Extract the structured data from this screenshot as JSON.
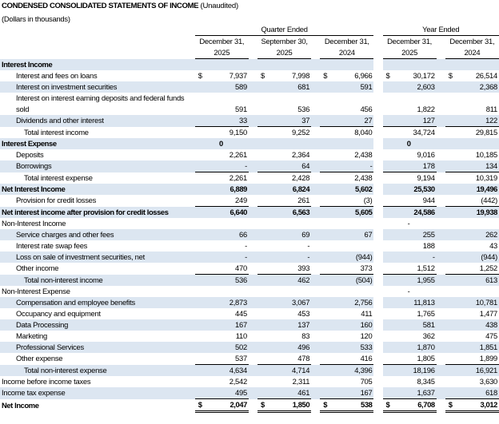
{
  "title": "CONDENSED CONSOLIDATED STATEMENTS OF INCOME",
  "title_suffix": "(Unaudited)",
  "subtitle": "(Dollars in thousands)",
  "groups": {
    "quarter": "Quarter Ended",
    "year": "Year Ended"
  },
  "columns": [
    {
      "line1": "December 31,",
      "line2": "2025"
    },
    {
      "line1": "September 30,",
      "line2": "2025"
    },
    {
      "line1": "December 31,",
      "line2": "2024"
    },
    {
      "line1": "December 31,",
      "line2": "2025"
    },
    {
      "line1": "December 31,",
      "line2": "2024"
    }
  ],
  "rows": [
    {
      "label": "Interest Income",
      "style": "section",
      "shade": true,
      "values": [
        "",
        "",
        "",
        "",
        ""
      ]
    },
    {
      "label": "Interest and fees on loans",
      "indent": 1,
      "dollar": true,
      "values": [
        "7,937",
        "7,998",
        "6,966",
        "30,172",
        "26,514"
      ]
    },
    {
      "label": "Interest on investment securities",
      "indent": 1,
      "shade": true,
      "values": [
        "589",
        "681",
        "591",
        "2,603",
        "2,368"
      ]
    },
    {
      "label": "Interest on interest earning deposits and federal funds sold",
      "indent": 1,
      "two": true,
      "values": [
        "591",
        "536",
        "456",
        "1,822",
        "811"
      ]
    },
    {
      "label": "Dividends and other interest",
      "indent": 1,
      "shade": true,
      "values": [
        "33",
        "37",
        "27",
        "127",
        "122"
      ]
    },
    {
      "label": "Total interest income",
      "indent": 2,
      "top": true,
      "values": [
        "9,150",
        "9,252",
        "8,040",
        "34,724",
        "29,815"
      ]
    },
    {
      "label": "Interest Expense",
      "style": "section",
      "shade": true,
      "values": [
        "0",
        "",
        "",
        "0",
        ""
      ],
      "center": true
    },
    {
      "label": "Deposits",
      "indent": 1,
      "values": [
        "2,261",
        "2,364",
        "2,438",
        "9,016",
        "10,185"
      ]
    },
    {
      "label": "Borrowings",
      "indent": 1,
      "shade": true,
      "values": [
        "-",
        "64",
        "-",
        "178",
        "134"
      ]
    },
    {
      "label": "Total interest expense",
      "indent": 2,
      "top": true,
      "values": [
        "2,261",
        "2,428",
        "2,438",
        "9,194",
        "10,319"
      ]
    },
    {
      "label": "Net Interest Income",
      "style": "section",
      "shade": true,
      "values": [
        "6,889",
        "6,824",
        "5,602",
        "25,530",
        "19,496"
      ]
    },
    {
      "label": "Provision for credit losses",
      "indent": 1,
      "values": [
        "249",
        "261",
        "(3)",
        "944",
        "(442)"
      ]
    },
    {
      "label": "Net interest income after provision for credit losses",
      "style": "section",
      "shade": true,
      "top": true,
      "values": [
        "6,640",
        "6,563",
        "5,605",
        "24,586",
        "19,938"
      ]
    },
    {
      "label": "Non-Interest Income",
      "values": [
        "",
        "",
        "",
        "-",
        ""
      ],
      "center": true
    },
    {
      "label": "Service charges and other fees",
      "indent": 1,
      "shade": true,
      "values": [
        "66",
        "69",
        "67",
        "255",
        "262"
      ]
    },
    {
      "label": "Interest rate swap fees",
      "indent": 1,
      "values": [
        "-",
        "-",
        "",
        "188",
        "43"
      ]
    },
    {
      "label": "Loss on sale of investment securities, net",
      "indent": 1,
      "shade": true,
      "values": [
        "-",
        "-",
        "(944)",
        "-",
        "(944)"
      ]
    },
    {
      "label": "Other income",
      "indent": 1,
      "values": [
        "470",
        "393",
        "373",
        "1,512",
        "1,252"
      ]
    },
    {
      "label": "Total non-interest income",
      "indent": 2,
      "shade": true,
      "top": true,
      "values": [
        "536",
        "462",
        "(504)",
        "1,955",
        "613"
      ]
    },
    {
      "label": "Non-Interest Expense",
      "values": [
        "",
        "",
        "",
        "-",
        ""
      ],
      "center": true
    },
    {
      "label": "Compensation and employee benefits",
      "indent": 1,
      "shade": true,
      "values": [
        "2,873",
        "3,067",
        "2,756",
        "11,813",
        "10,781"
      ]
    },
    {
      "label": "Occupancy and equipment",
      "indent": 1,
      "values": [
        "445",
        "453",
        "411",
        "1,765",
        "1,477"
      ]
    },
    {
      "label": "Data Processing",
      "indent": 1,
      "shade": true,
      "values": [
        "167",
        "137",
        "160",
        "581",
        "438"
      ]
    },
    {
      "label": "Marketing",
      "indent": 1,
      "values": [
        "110",
        "83",
        "120",
        "362",
        "475"
      ]
    },
    {
      "label": "Professional Services",
      "indent": 1,
      "shade": true,
      "values": [
        "502",
        "496",
        "533",
        "1,870",
        "1,851"
      ]
    },
    {
      "label": "Other expense",
      "indent": 1,
      "values": [
        "537",
        "478",
        "416",
        "1,805",
        "1,899"
      ]
    },
    {
      "label": "Total non-interest expense",
      "indent": 2,
      "shade": true,
      "top": true,
      "values": [
        "4,634",
        "4,714",
        "4,396",
        "18,196",
        "16,921"
      ]
    },
    {
      "label": "Income before income taxes",
      "values": [
        "2,542",
        "2,311",
        "705",
        "8,345",
        "3,630"
      ]
    },
    {
      "label": "Income tax expense",
      "shade": true,
      "values": [
        "495",
        "461",
        "167",
        "1,637",
        "618"
      ]
    },
    {
      "label": "Net Income",
      "style": "section",
      "dollar": true,
      "top": true,
      "dbl": true,
      "values": [
        "2,047",
        "1,850",
        "538",
        "6,708",
        "3,012"
      ]
    }
  ],
  "currency_symbol": "$",
  "colors": {
    "shade": "#dce6f1"
  }
}
